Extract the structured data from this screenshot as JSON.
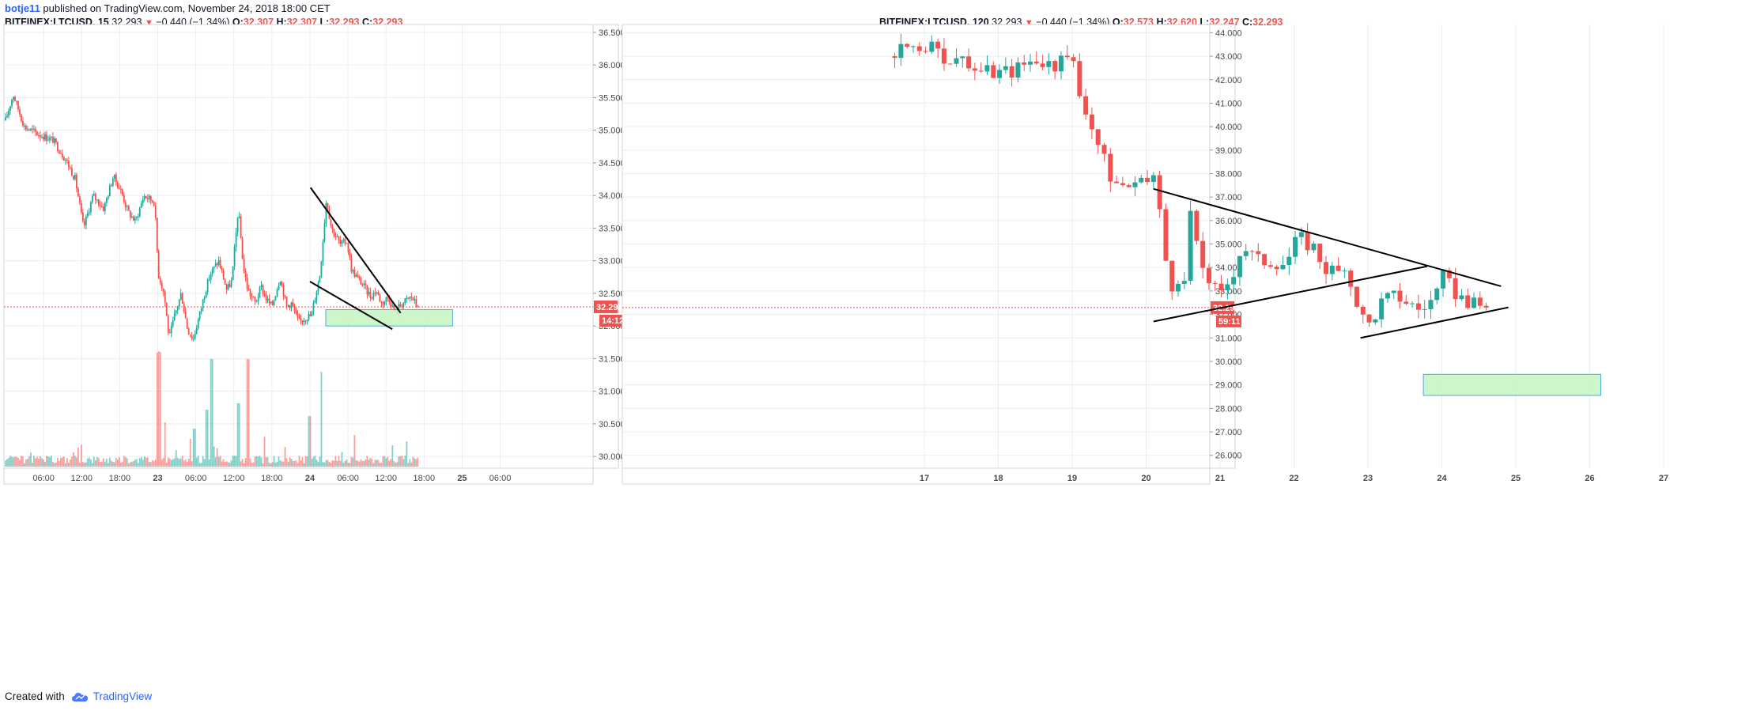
{
  "header": {
    "author": "botje11",
    "published": "published on TradingView.com, November 24, 2018 18:00 CET"
  },
  "footer": {
    "created_with": "Created with",
    "brand": "TradingView",
    "icon": "tradingview-cloud-icon"
  },
  "colors": {
    "up": "#26a69a",
    "down": "#ef5350",
    "grid": "#e9eef2",
    "box_fill": "#c8f7c5",
    "box_stroke": "#3da3e0",
    "price_line": "#ef5350"
  },
  "chart_data": [
    {
      "type": "candlestick",
      "symbol": "BITFINEX:LTCUSD",
      "interval": "15",
      "last": "32.293",
      "change": "−0.440 (−1.34%)",
      "ohlc_labels": {
        "o": "O:",
        "h": "H:",
        "l": "L:",
        "c": "C:"
      },
      "ohlc": {
        "o": "32.307",
        "h": "32.307",
        "l": "32.293",
        "c": "32.293"
      },
      "price_tag": "32.293",
      "countdown": "14:12",
      "ylim": [
        29.82,
        36.62
      ],
      "y_ticks": [
        "30.000",
        "30.500",
        "31.000",
        "31.500",
        "32.000",
        "32.500",
        "33.000",
        "33.500",
        "34.000",
        "34.500",
        "35.000",
        "35.500",
        "36.000",
        "36.500"
      ],
      "x_ticks": [
        "06:00",
        "12:00",
        "18:00",
        "23",
        "06:00",
        "12:00",
        "18:00",
        "24",
        "06:00",
        "12:00",
        "18:00",
        "25",
        "06:00"
      ],
      "x_ticks_hours": [
        6,
        12,
        18,
        24,
        30,
        36,
        42,
        48,
        54,
        60,
        66,
        72,
        78
      ],
      "series_hours": [
        0,
        65
      ],
      "anchors": [
        [
          0,
          35.15
        ],
        [
          1.2,
          35.55
        ],
        [
          3,
          35.05
        ],
        [
          5,
          34.95
        ],
        [
          7.5,
          34.85
        ],
        [
          9.5,
          34.55
        ],
        [
          11,
          34.25
        ],
        [
          12.3,
          33.5
        ],
        [
          13.8,
          34.0
        ],
        [
          15.5,
          33.8
        ],
        [
          17,
          34.3
        ],
        [
          18.3,
          34.05
        ],
        [
          19.3,
          33.75
        ],
        [
          20.5,
          33.6
        ],
        [
          21.8,
          34.0
        ],
        [
          23.5,
          33.9
        ],
        [
          24.1,
          32.8
        ],
        [
          25,
          32.5
        ],
        [
          25.8,
          31.8
        ],
        [
          26.5,
          32.1
        ],
        [
          27.7,
          32.5
        ],
        [
          28.7,
          31.95
        ],
        [
          29.6,
          31.8
        ],
        [
          30.8,
          32.25
        ],
        [
          31.4,
          32.5
        ],
        [
          32.3,
          32.8
        ],
        [
          33.6,
          33.0
        ],
        [
          34.9,
          32.55
        ],
        [
          35.7,
          32.7
        ],
        [
          36.7,
          33.8
        ],
        [
          37.5,
          32.9
        ],
        [
          38.2,
          32.55
        ],
        [
          39.4,
          32.35
        ],
        [
          40.3,
          32.6
        ],
        [
          41.2,
          32.4
        ],
        [
          42,
          32.3
        ],
        [
          43.3,
          32.75
        ],
        [
          44.3,
          32.3
        ],
        [
          45.1,
          32.35
        ],
        [
          46.2,
          32.05
        ],
        [
          47.6,
          32.15
        ],
        [
          48.2,
          32.15
        ],
        [
          49.6,
          32.8
        ],
        [
          50.6,
          33.95
        ],
        [
          51.4,
          33.5
        ],
        [
          52.8,
          33.25
        ],
        [
          53.8,
          33.3
        ],
        [
          54.6,
          32.85
        ],
        [
          56.2,
          32.65
        ],
        [
          57.6,
          32.45
        ],
        [
          58.4,
          32.55
        ],
        [
          59.3,
          32.35
        ],
        [
          60.4,
          32.45
        ],
        [
          61.4,
          32.2
        ],
        [
          62.2,
          32.32
        ],
        [
          63.3,
          32.4
        ],
        [
          64,
          32.45
        ],
        [
          64.6,
          32.35
        ],
        [
          65,
          32.293
        ]
      ],
      "volume_spikes": [
        [
          24.1,
          0.9
        ],
        [
          24.3,
          0.75
        ],
        [
          25.2,
          0.35
        ],
        [
          29.7,
          0.3
        ],
        [
          31.8,
          0.45
        ],
        [
          32.5,
          0.85
        ],
        [
          36.8,
          0.5
        ],
        [
          38.3,
          0.85
        ],
        [
          48,
          0.4
        ],
        [
          49.8,
          0.75
        ],
        [
          55,
          0.25
        ]
      ],
      "overlays": {
        "lines": [
          [
            [
              48.0,
              32.68
            ],
            [
              61.0,
              31.95
            ]
          ],
          [
            [
              48.1,
              34.12
            ],
            [
              62.3,
              32.2
            ]
          ]
        ],
        "box": {
          "h": [
            50.5,
            70.5
          ],
          "y": [
            32.0,
            32.25
          ]
        }
      }
    },
    {
      "type": "candlestick",
      "symbol": "BITFINEX:LTCUSD",
      "interval": "120",
      "last": "32.293",
      "change": "−0.440 (−1.34%)",
      "ohlc_labels": {
        "o": "O:",
        "h": "H:",
        "l": "L:",
        "c": "C:"
      },
      "ohlc": {
        "o": "32.573",
        "h": "32.620",
        "l": "32.247",
        "c": "32.293"
      },
      "price_tag": "32.293",
      "countdown": "59:11",
      "ylim": [
        25.45,
        44.35
      ],
      "y_ticks": [
        "26.000",
        "27.000",
        "28.000",
        "29.000",
        "30.000",
        "31.000",
        "32.000",
        "33.000",
        "34.000",
        "35.000",
        "36.000",
        "37.000",
        "38.000",
        "39.000",
        "40.000",
        "41.000",
        "42.000",
        "43.000",
        "44.000"
      ],
      "x_ticks": [
        "17",
        "18",
        "19",
        "20",
        "21",
        "22",
        "23",
        "24",
        "25",
        "26",
        "27"
      ],
      "x_ticks_day": [
        17,
        18,
        19,
        20,
        21,
        22,
        23,
        24,
        25,
        26,
        27
      ],
      "series_day": [
        16.6,
        24.6
      ],
      "anchors": [
        [
          16.6,
          43.0
        ],
        [
          16.8,
          43.5
        ],
        [
          17.1,
          43.3
        ],
        [
          17.4,
          42.8
        ],
        [
          17.7,
          42.4
        ],
        [
          18.0,
          42.3
        ],
        [
          18.2,
          42.4
        ],
        [
          18.5,
          42.9
        ],
        [
          18.8,
          42.6
        ],
        [
          19.0,
          42.9
        ],
        [
          19.1,
          41.4
        ],
        [
          19.2,
          40.7
        ],
        [
          19.3,
          39.7
        ],
        [
          19.5,
          38.0
        ],
        [
          19.6,
          37.6
        ],
        [
          19.9,
          37.4
        ],
        [
          20.1,
          37.9
        ],
        [
          20.2,
          36.0
        ],
        [
          20.3,
          33.5
        ],
        [
          20.5,
          32.7
        ],
        [
          20.6,
          36.4
        ],
        [
          20.7,
          34.5
        ],
        [
          20.9,
          33.2
        ],
        [
          21.0,
          32.7
        ],
        [
          21.2,
          34.0
        ],
        [
          21.3,
          35.0
        ],
        [
          21.5,
          34.3
        ],
        [
          21.7,
          34.3
        ],
        [
          21.9,
          34.2
        ],
        [
          22.0,
          35.0
        ],
        [
          22.1,
          35.2
        ],
        [
          22.3,
          34.8
        ],
        [
          22.4,
          34.0
        ],
        [
          22.6,
          33.8
        ],
        [
          22.8,
          33.2
        ],
        [
          22.9,
          32.0
        ],
        [
          23.0,
          31.5
        ],
        [
          23.2,
          32.6
        ],
        [
          23.4,
          32.8
        ],
        [
          23.6,
          32.4
        ],
        [
          23.7,
          32.2
        ],
        [
          23.9,
          32.7
        ],
        [
          24.0,
          33.6
        ],
        [
          24.1,
          33.2
        ],
        [
          24.3,
          32.6
        ],
        [
          24.45,
          32.35
        ],
        [
          24.6,
          32.293
        ]
      ],
      "overlays": {
        "lines": [
          [
            [
              20.1,
              37.35
            ],
            [
              24.8,
              33.2
            ]
          ],
          [
            [
              20.1,
              31.7
            ],
            [
              23.8,
              34.05
            ]
          ],
          [
            [
              22.9,
              31.0
            ],
            [
              24.9,
              32.3
            ]
          ]
        ],
        "box": {
          "d": [
            23.75,
            26.15
          ],
          "y": [
            28.55,
            29.45
          ]
        }
      }
    }
  ]
}
